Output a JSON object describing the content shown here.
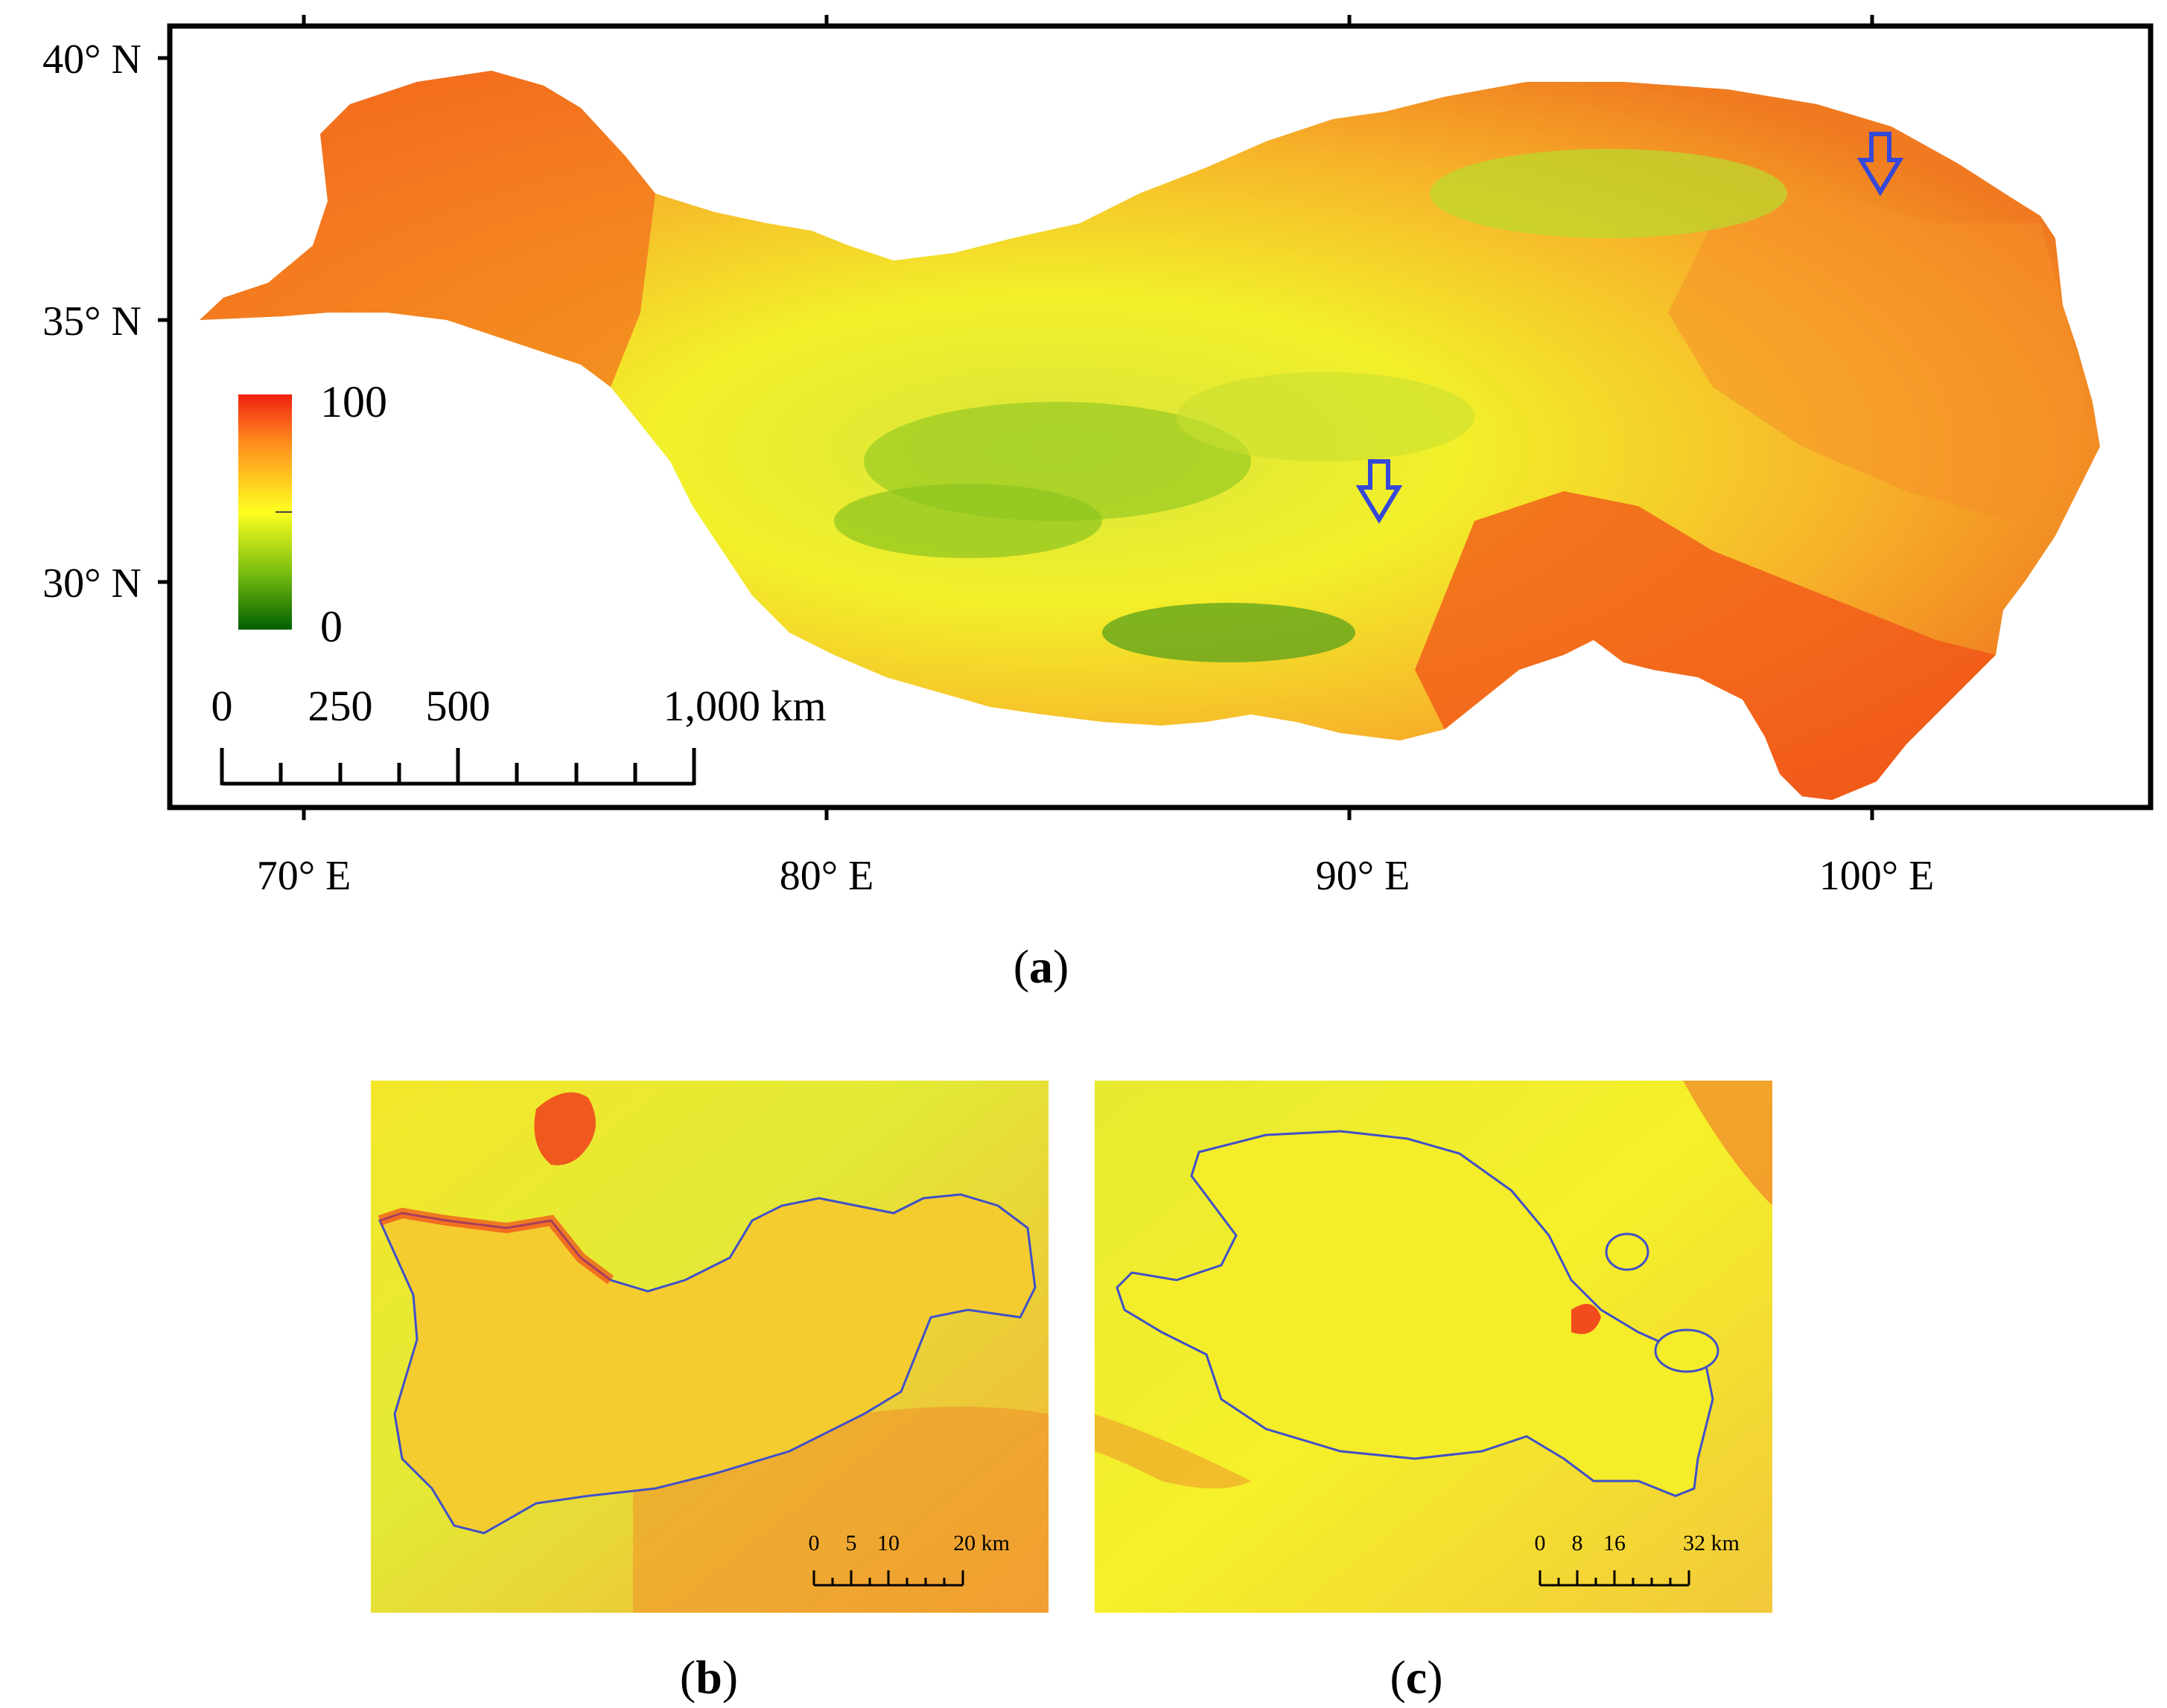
{
  "colors": {
    "high": "#f02010",
    "mid": "#ffff20",
    "low": "#006000",
    "frame": "#000000",
    "outline": "#4050c8",
    "arrow": "#3548d8"
  },
  "panel_a": {
    "lat_labels": [
      "40° N",
      "35° N",
      "30° N"
    ],
    "lon_labels": [
      "70° E",
      "80° E",
      "90° E",
      "100° E"
    ],
    "legend": {
      "max": "100",
      "min": "0"
    },
    "scalebar": [
      "0",
      "250",
      "500",
      "1,000 km"
    ],
    "caption_letter": "a",
    "arrow_icon": "down-arrow-icon"
  },
  "panel_b": {
    "scalebar": [
      "0",
      "5",
      "10",
      "20 km"
    ],
    "caption_letter": "b"
  },
  "panel_c": {
    "scalebar": [
      "0",
      "8",
      "16",
      "32 km"
    ],
    "caption_letter": "c"
  }
}
